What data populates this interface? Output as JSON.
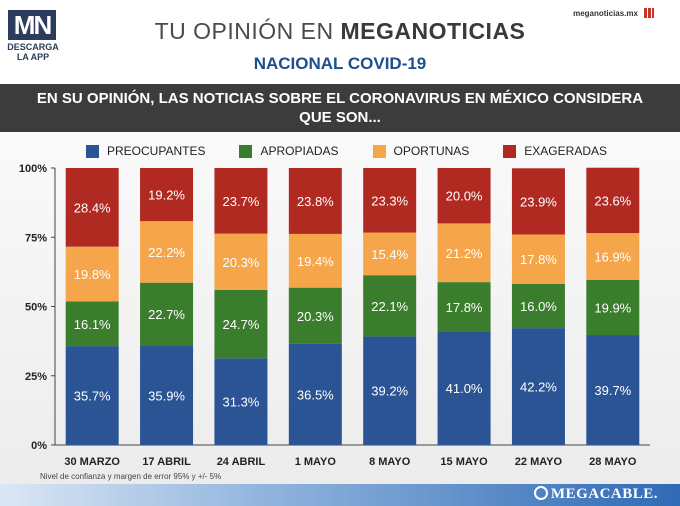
{
  "header": {
    "logo_text": "MN",
    "logo_sub_1": "DESCARGA",
    "logo_sub_2": "LA APP",
    "title_light": "TU OPINIÓN EN ",
    "title_bold": "MEGANOTICIAS",
    "subtitle": "NACIONAL COVID-19",
    "site": "meganoticias.mx"
  },
  "banner": {
    "line1": "EN SU OPINIÓN, LAS NOTICIAS SOBRE EL CORONAVIRUS EN MÉXICO CONSIDERA",
    "line2": "QUE SON..."
  },
  "footnote": "Nivel de confianza y margen de error 95% y +/- 5%",
  "brand": "MEGACABLE.",
  "colors": {
    "preocupantes": "#2a5493",
    "apropiadas": "#3a7d2c",
    "oportunas": "#f5a54a",
    "exageradas": "#b02a22"
  },
  "chart_data": {
    "type": "bar",
    "stacked": true,
    "categories": [
      "30 MARZO",
      "17 ABRIL",
      "24 ABRIL",
      "1 MAYO",
      "8 MAYO",
      "15 MAYO",
      "22 MAYO",
      "28 MAYO"
    ],
    "series": [
      {
        "name": "PREOCUPANTES",
        "color": "#2a5493",
        "values": [
          35.7,
          35.9,
          31.3,
          36.5,
          39.2,
          41.0,
          42.2,
          39.7
        ]
      },
      {
        "name": "APROPIADAS",
        "color": "#3a7d2c",
        "values": [
          16.1,
          22.7,
          24.7,
          20.3,
          22.1,
          17.8,
          16.0,
          19.9
        ]
      },
      {
        "name": "OPORTUNAS",
        "color": "#f5a54a",
        "values": [
          19.8,
          22.2,
          20.3,
          19.4,
          15.4,
          21.2,
          17.8,
          16.9
        ]
      },
      {
        "name": "EXAGERADAS",
        "color": "#b02a22",
        "values": [
          28.4,
          19.2,
          23.7,
          23.8,
          23.3,
          20.0,
          23.9,
          23.6
        ]
      }
    ],
    "data_labels": [
      [
        "35.7%",
        "35.9%",
        "31.3%",
        "36.5%",
        "39.2%",
        "41.0%",
        "42.2%",
        "39.7%"
      ],
      [
        "16.1%",
        "22.7%",
        "24.7%",
        "20.3%",
        "22.1%",
        "17.8%",
        "16.0%",
        "19.9%"
      ],
      [
        "19.8%",
        "22.2%",
        "20.3%",
        "19.4%",
        "15.4%",
        "21.2%",
        "17.8%",
        "16.9%"
      ],
      [
        "28.4%",
        "19.2%",
        "23.7%",
        "23.8%",
        "23.3%",
        "20.0%",
        "23.9%",
        "23.6%"
      ]
    ],
    "ylim": [
      0,
      100
    ],
    "yticks": [
      0,
      25,
      50,
      75,
      100
    ],
    "ytick_labels": [
      "0%",
      "25%",
      "50%",
      "75%",
      "100%"
    ],
    "legend_position": "top",
    "grid": false
  }
}
